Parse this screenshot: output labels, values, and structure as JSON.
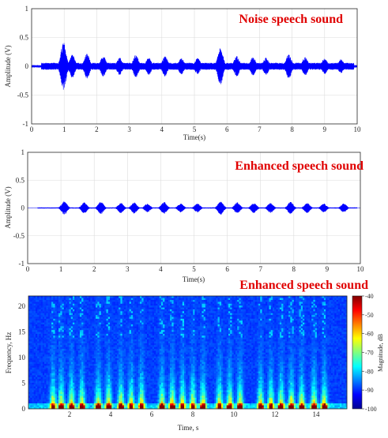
{
  "chart_data": [
    {
      "type": "line",
      "title": "Noise speech sound",
      "xlabel": "Time(s)",
      "ylabel": "Amplitude (V)",
      "xlim": [
        0,
        10
      ],
      "ylim": [
        -1,
        1
      ],
      "xticks": [
        "0",
        "1",
        "2",
        "3",
        "4",
        "5",
        "6",
        "7",
        "8",
        "9",
        "10"
      ],
      "yticks": [
        "1",
        "0.5",
        "0",
        "-0.5",
        "-1"
      ],
      "grid": true,
      "line_color": "#0000ff",
      "title_color": "#e00000",
      "envelope": {
        "noise_floor": 0.06,
        "bursts": [
          {
            "t": 0.98,
            "amp": 0.42
          },
          {
            "t": 1.25,
            "amp": 0.2
          },
          {
            "t": 1.7,
            "amp": 0.22
          },
          {
            "t": 2.2,
            "amp": 0.18
          },
          {
            "t": 2.7,
            "amp": 0.15
          },
          {
            "t": 3.2,
            "amp": 0.2
          },
          {
            "t": 3.6,
            "amp": 0.15
          },
          {
            "t": 4.1,
            "amp": 0.18
          },
          {
            "t": 4.6,
            "amp": 0.14
          },
          {
            "t": 5.1,
            "amp": 0.14
          },
          {
            "t": 5.8,
            "amp": 0.32
          },
          {
            "t": 6.3,
            "amp": 0.18
          },
          {
            "t": 6.8,
            "amp": 0.16
          },
          {
            "t": 7.2,
            "amp": 0.15
          },
          {
            "t": 7.9,
            "amp": 0.22
          },
          {
            "t": 8.4,
            "amp": 0.16
          },
          {
            "t": 9.0,
            "amp": 0.14
          },
          {
            "t": 9.5,
            "amp": 0.12
          }
        ]
      }
    },
    {
      "type": "line",
      "title": "Enhanced speech sound",
      "xlabel": "Time(s)",
      "ylabel": "Amplitude (V)",
      "xlim": [
        0,
        10
      ],
      "ylim": [
        -1,
        1
      ],
      "xticks": [
        "0",
        "1",
        "2",
        "3",
        "4",
        "5",
        "6",
        "7",
        "8",
        "9",
        "10"
      ],
      "yticks": [
        "1",
        "0.5",
        "0",
        "-0.5",
        "-1"
      ],
      "grid": true,
      "line_color": "#0000ff",
      "title_color": "#e00000",
      "envelope": {
        "noise_floor": 0.01,
        "bursts": [
          {
            "t": 1.1,
            "amp": 0.12
          },
          {
            "t": 1.7,
            "amp": 0.1
          },
          {
            "t": 2.2,
            "amp": 0.11
          },
          {
            "t": 2.8,
            "amp": 0.09
          },
          {
            "t": 3.2,
            "amp": 0.1
          },
          {
            "t": 3.6,
            "amp": 0.08
          },
          {
            "t": 4.1,
            "amp": 0.11
          },
          {
            "t": 4.6,
            "amp": 0.08
          },
          {
            "t": 5.1,
            "amp": 0.08
          },
          {
            "t": 5.8,
            "amp": 0.12
          },
          {
            "t": 6.3,
            "amp": 0.1
          },
          {
            "t": 6.8,
            "amp": 0.09
          },
          {
            "t": 7.3,
            "amp": 0.09
          },
          {
            "t": 7.9,
            "amp": 0.11
          },
          {
            "t": 8.4,
            "amp": 0.09
          },
          {
            "t": 8.9,
            "amp": 0.08
          },
          {
            "t": 9.5,
            "amp": 0.08
          }
        ]
      }
    },
    {
      "type": "heatmap",
      "title": "Enhanced speech sound",
      "xlabel": "Time, s",
      "ylabel": "Frequency, Hz",
      "xlim": [
        0,
        15.5
      ],
      "ylim": [
        0,
        22
      ],
      "xticks": [
        "2",
        "4",
        "6",
        "8",
        "10",
        "12",
        "14"
      ],
      "yticks": [
        "20",
        "15",
        "10",
        "5",
        "0"
      ],
      "colorbar": {
        "label": "Magnitude, dB",
        "range": [
          -100,
          -40
        ],
        "ticks": [
          "-40",
          "-50",
          "-60",
          "-70",
          "-80",
          "-90",
          "-100"
        ]
      },
      "title_color": "#e00000",
      "syllable_times": [
        1.2,
        1.6,
        2.1,
        2.6,
        3.4,
        3.9,
        4.5,
        5.0,
        5.5,
        6.5,
        7.0,
        7.5,
        8.0,
        8.5,
        9.3,
        9.8,
        10.3,
        11.3,
        11.8,
        12.3,
        12.8,
        13.3,
        13.9,
        14.4
      ]
    }
  ]
}
